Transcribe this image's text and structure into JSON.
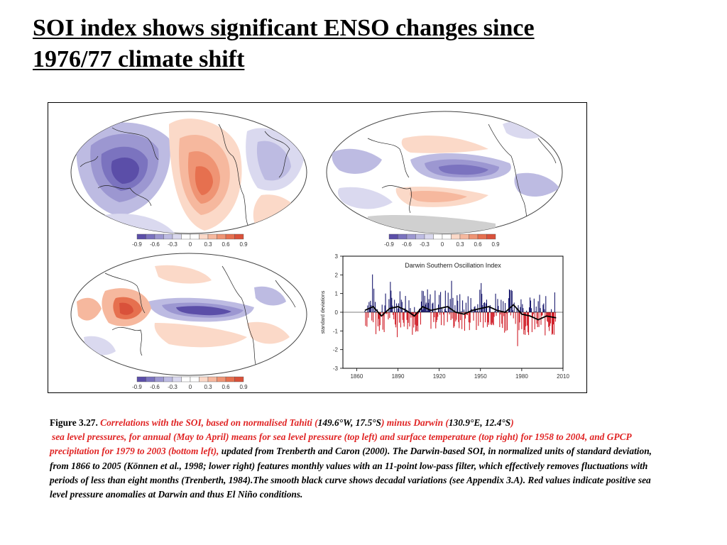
{
  "slide": {
    "title_line1": "SOI index shows significant ENSO changes since ",
    "title_line2": "1976/77 climate shift"
  },
  "figure": {
    "colorbar_labels": [
      "-0.9",
      "-0.6",
      "-0.3",
      "0",
      "0.3",
      "0.6",
      "0.9"
    ],
    "colorbar_colors": [
      "#5b4ea8",
      "#7b73bf",
      "#9c97d1",
      "#bdbbe2",
      "#dad9ef",
      "#ffffff",
      "#ffffff",
      "#fbd9c8",
      "#f6b89e",
      "#ef9474",
      "#e6704f",
      "#d9513a"
    ],
    "chart_data": {
      "type": "area",
      "title": "Darwin Southern Oscillation Index",
      "xlabel": "",
      "ylabel": "standard deviations",
      "xlim": [
        1850,
        2010
      ],
      "ylim": [
        -3,
        3
      ],
      "xticks": [
        "1860",
        "1890",
        "1920",
        "1950",
        "1980",
        "2010"
      ],
      "yticks": [
        "3",
        "2",
        "1",
        "0",
        "-1",
        "-2",
        "-3"
      ],
      "grid": false,
      "positive_color": "#1a1a6e",
      "negative_color": "#d0202a",
      "smooth_color": "#000000",
      "series_smooth": {
        "x": [
          1866,
          1872,
          1878,
          1884,
          1890,
          1896,
          1902,
          1908,
          1914,
          1920,
          1926,
          1932,
          1938,
          1944,
          1950,
          1956,
          1962,
          1968,
          1974,
          1980,
          1986,
          1992,
          1998,
          2005
        ],
        "values": [
          0.1,
          0.3,
          -0.2,
          0.2,
          0.3,
          0.1,
          -0.2,
          0.3,
          0.1,
          0.2,
          0.3,
          0.0,
          -0.1,
          0.1,
          0.2,
          0.3,
          0.1,
          0.0,
          0.4,
          -0.1,
          -0.2,
          -0.4,
          -0.2,
          -0.3
        ]
      }
    }
  },
  "caption": {
    "fig_label": "Figure 3.27. ",
    "red1": "Correlations with the SOI, based on normalised Tahiti (",
    "black1": "149.6°W, 17.5°S",
    "red2": ") minus Darwin (",
    "black2": "130.9°E, 12.4°S",
    "red3": ")",
    "red4": " sea level pressures, for annual (May to April) means for sea level pressure (top left) and surface temperature (top right) for 1958 to 2004, and GPCP precipitation for 1979 to 2003 (bottom left),",
    "black3": " updated from Trenberth and Caron (2000). The Darwin-based SOI, in normalized units of standard deviation, from 1866 to 2005 (Können et al., 1998; lower right) features monthly values with an 11-point low-pass filter, which effectively removes fluctuations with periods of less than eight months (Trenberth, 1984).The smooth black curve shows decadal variations (see Appendix 3.A). Red values indicate positive sea level pressure anomalies at Darwin and thus El Niño conditions."
  }
}
